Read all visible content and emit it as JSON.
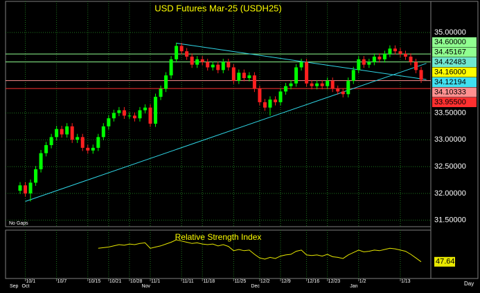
{
  "chart_data": {
    "type": "candlestick",
    "title": "USD Futures Mar-25 (USDH25)",
    "note": "No Gaps",
    "period": "Day",
    "up_color": "#00ff00",
    "down_color": "#ff2020",
    "grid_color": "#1f7a1f",
    "categories": [
      null,
      "10/1",
      null,
      null,
      null,
      null,
      null,
      "10/7",
      null,
      null,
      null,
      null,
      null,
      "10/15",
      null,
      null,
      null,
      "10/21",
      null,
      null,
      null,
      "10/28",
      null,
      null,
      null,
      "11/1",
      null,
      null,
      null,
      null,
      null,
      "11/11",
      null,
      null,
      null,
      "11/18",
      null,
      null,
      null,
      null,
      null,
      "11/25",
      null,
      null,
      null,
      null,
      "12/2",
      null,
      null,
      null,
      "12/9",
      null,
      null,
      null,
      null,
      "12/16",
      null,
      null,
      null,
      "12/23",
      null,
      null,
      null,
      null,
      null,
      "1/2",
      null,
      null,
      null,
      null,
      null,
      null,
      null,
      "1/13",
      null,
      null,
      null,
      null
    ],
    "months": [
      "Sep",
      "Oct",
      null,
      null,
      null,
      null,
      null,
      null,
      null,
      null,
      null,
      null,
      null,
      null,
      null,
      null,
      null,
      null,
      null,
      null,
      null,
      null,
      null,
      null,
      "Nov",
      null,
      null,
      null,
      null,
      null,
      null,
      null,
      null,
      null,
      null,
      null,
      null,
      null,
      null,
      null,
      null,
      null,
      null,
      null,
      null,
      "Dec",
      null,
      null,
      null,
      null,
      null,
      null,
      null,
      null,
      null,
      null,
      null,
      null,
      null,
      null,
      null,
      null,
      null,
      null,
      "Jan",
      null,
      null,
      null,
      null,
      null,
      null,
      null,
      null,
      null,
      null,
      null,
      null,
      null
    ],
    "open": [
      32.05,
      32.15,
      32.0,
      32.2,
      32.45,
      32.75,
      32.9,
      33.05,
      33.2,
      33.1,
      33.25,
      33.0,
      33.05,
      32.85,
      32.8,
      32.85,
      33.05,
      33.25,
      33.4,
      33.5,
      33.55,
      33.45,
      33.45,
      33.4,
      33.55,
      33.6,
      33.3,
      33.8,
      33.95,
      34.2,
      34.5,
      34.75,
      34.65,
      34.55,
      34.4,
      34.5,
      34.45,
      34.35,
      34.4,
      34.3,
      34.45,
      34.35,
      34.1,
      34.25,
      34.15,
      34.2,
      33.95,
      33.7,
      33.6,
      33.75,
      33.7,
      33.9,
      34.0,
      34.05,
      34.35,
      34.45,
      34.05,
      34.0,
      34.05,
      34.0,
      34.1,
      33.95,
      33.9,
      33.85,
      34.1,
      34.3,
      34.5,
      34.4,
      34.45,
      34.55,
      34.5,
      34.6,
      34.7,
      34.65,
      34.6,
      34.55,
      34.45,
      34.3
    ],
    "high": [
      32.21,
      32.21,
      32.26,
      32.51,
      32.81,
      32.96,
      33.11,
      33.26,
      33.26,
      33.31,
      33.31,
      33.11,
      33.11,
      32.91,
      32.91,
      33.11,
      33.31,
      33.46,
      33.56,
      33.61,
      33.61,
      33.51,
      33.51,
      33.61,
      33.66,
      33.66,
      33.86,
      34.01,
      34.26,
      34.56,
      34.81,
      34.81,
      34.71,
      34.61,
      34.56,
      34.56,
      34.51,
      34.46,
      34.46,
      34.51,
      34.51,
      34.41,
      34.31,
      34.31,
      34.26,
      34.26,
      34.01,
      33.76,
      33.81,
      33.81,
      33.96,
      34.06,
      34.11,
      34.41,
      34.51,
      34.51,
      34.11,
      34.11,
      34.11,
      34.16,
      34.16,
      34.01,
      33.96,
      34.16,
      34.36,
      34.56,
      34.56,
      34.51,
      34.61,
      34.61,
      34.66,
      34.76,
      34.76,
      34.71,
      34.66,
      34.61,
      34.51,
      34.36
    ],
    "low": [
      31.99,
      31.94,
      31.85,
      32.14,
      32.39,
      32.69,
      32.84,
      32.99,
      33.04,
      33.04,
      32.94,
      32.94,
      32.79,
      32.74,
      32.74,
      32.79,
      32.99,
      33.19,
      33.34,
      33.44,
      33.39,
      33.39,
      33.34,
      33.34,
      33.49,
      33.24,
      33.24,
      33.74,
      33.89,
      34.14,
      34.44,
      34.59,
      34.49,
      34.34,
      34.34,
      34.39,
      34.29,
      34.29,
      34.24,
      34.24,
      34.29,
      34.04,
      34.04,
      34.09,
      34.09,
      33.89,
      33.64,
      33.54,
      33.45,
      33.64,
      33.64,
      33.84,
      33.94,
      33.99,
      34.29,
      33.99,
      33.94,
      33.94,
      33.94,
      33.94,
      33.89,
      33.84,
      33.79,
      33.79,
      34.04,
      34.24,
      34.34,
      34.34,
      34.39,
      34.44,
      34.44,
      34.54,
      34.59,
      34.54,
      34.49,
      34.39,
      34.24,
      34.06
    ],
    "close": [
      32.15,
      32.0,
      32.2,
      32.45,
      32.75,
      32.9,
      33.05,
      33.2,
      33.1,
      33.25,
      33.0,
      33.05,
      32.85,
      32.8,
      32.85,
      33.05,
      33.25,
      33.4,
      33.5,
      33.55,
      33.45,
      33.45,
      33.4,
      33.55,
      33.6,
      33.3,
      33.8,
      33.95,
      34.2,
      34.5,
      34.75,
      34.65,
      34.55,
      34.4,
      34.5,
      34.45,
      34.35,
      34.4,
      34.3,
      34.45,
      34.35,
      34.1,
      34.25,
      34.15,
      34.2,
      33.95,
      33.7,
      33.6,
      33.75,
      33.7,
      33.9,
      34.0,
      34.05,
      34.35,
      34.45,
      34.05,
      34.0,
      34.05,
      34.0,
      34.1,
      33.95,
      33.9,
      33.85,
      34.1,
      34.3,
      34.5,
      34.4,
      34.45,
      34.55,
      34.5,
      34.6,
      34.7,
      34.65,
      34.6,
      34.55,
      34.45,
      34.3,
      34.12
    ],
    "ylim": [
      31.38,
      35.58
    ],
    "yticks": [
      {
        "value": 35,
        "label": "35.00000"
      },
      {
        "value": 33.5,
        "label": "33.50000"
      },
      {
        "value": 33,
        "label": "33.00000"
      },
      {
        "value": 32.5,
        "label": "32.50000"
      },
      {
        "value": 32,
        "label": "32.00000"
      },
      {
        "value": 31.5,
        "label": "31.50000"
      }
    ],
    "levels": [
      {
        "value": 34.6,
        "label": "34.60000",
        "color": "#90ff90",
        "line": true
      },
      {
        "value": 34.45167,
        "label": "34.45167",
        "color": "#90ff90",
        "line": true
      },
      {
        "value": 34.42483,
        "label": "34.42483",
        "color": "#70e8d0",
        "line": false
      },
      {
        "value": 34.16,
        "label": "34.16000",
        "color": "#ffff00",
        "line": false
      },
      {
        "value": 34.12194,
        "label": "34.12194",
        "color": "#40e0f0",
        "line": false
      },
      {
        "value": 34.10333,
        "label": "34.10333",
        "color": "#ff9090",
        "line": true
      },
      {
        "value": 33.955,
        "label": "33.95500",
        "color": "#ff3030",
        "line": true
      }
    ],
    "trendlines": [
      {
        "color": "#30d8e8",
        "x": [
          1,
          78
        ],
        "values": [
          31.85,
          34.42483
        ]
      },
      {
        "color": "#30d8e8",
        "x": [
          30,
          78
        ],
        "values": [
          34.8,
          34.12194
        ]
      }
    ],
    "rsi": {
      "name": "Relative Strength Index",
      "color": "#e8e800",
      "ylim": [
        20,
        100
      ],
      "values": [
        null,
        null,
        null,
        null,
        null,
        null,
        null,
        null,
        null,
        null,
        null,
        null,
        null,
        null,
        null,
        70,
        71,
        72,
        74,
        76,
        75,
        77,
        76,
        78,
        79,
        70,
        72,
        74,
        77,
        80,
        84,
        82,
        80,
        78,
        79,
        77,
        76,
        77,
        74,
        76,
        73,
        66,
        68,
        66,
        67,
        60,
        54,
        52,
        55,
        53,
        57,
        59,
        60,
        65,
        67,
        59,
        58,
        59,
        57,
        60,
        56,
        55,
        53,
        59,
        63,
        67,
        64,
        65,
        67,
        66,
        68,
        70,
        69,
        67,
        65,
        60,
        54,
        47.64
      ]
    }
  }
}
